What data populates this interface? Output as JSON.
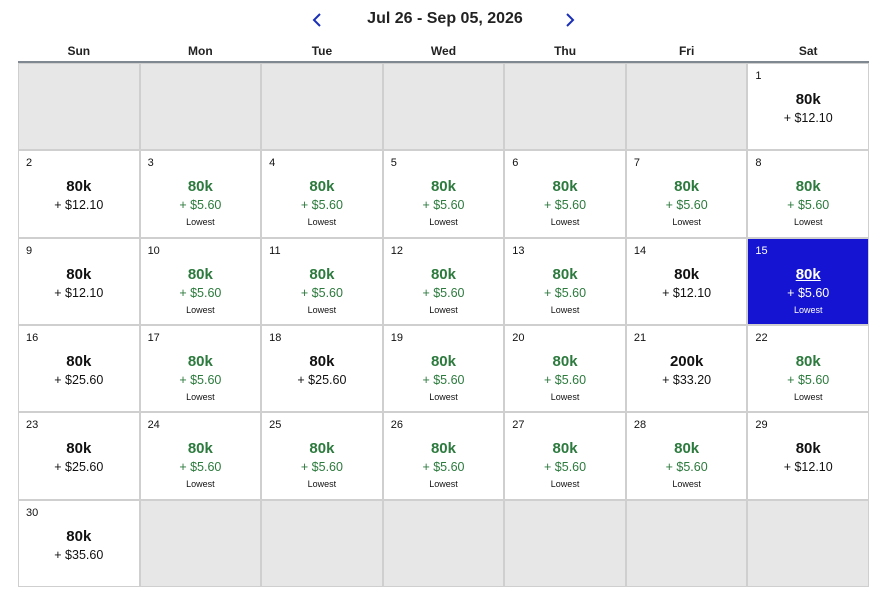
{
  "header": {
    "range_title": "Jul 26 - Sep 05, 2026",
    "prev_icon": "chevron-left-icon",
    "next_icon": "chevron-right-icon",
    "accent_color": "#1a2fb8"
  },
  "weekdays": [
    "Sun",
    "Mon",
    "Tue",
    "Wed",
    "Thu",
    "Fri",
    "Sat"
  ],
  "colors": {
    "lowest": "#2c7a3d",
    "selected": "#1414d2",
    "empty": "#e7e7e7"
  },
  "calendar": {
    "leading_empty": 6,
    "trailing_empty": 6,
    "selected_day": "15",
    "days": [
      {
        "day": "1",
        "points": "80k",
        "fee": "+ $12.10",
        "tag": ""
      },
      {
        "day": "2",
        "points": "80k",
        "fee": "+ $12.10",
        "tag": ""
      },
      {
        "day": "3",
        "points": "80k",
        "fee": "+ $5.60",
        "tag": "Lowest"
      },
      {
        "day": "4",
        "points": "80k",
        "fee": "+ $5.60",
        "tag": "Lowest"
      },
      {
        "day": "5",
        "points": "80k",
        "fee": "+ $5.60",
        "tag": "Lowest"
      },
      {
        "day": "6",
        "points": "80k",
        "fee": "+ $5.60",
        "tag": "Lowest"
      },
      {
        "day": "7",
        "points": "80k",
        "fee": "+ $5.60",
        "tag": "Lowest"
      },
      {
        "day": "8",
        "points": "80k",
        "fee": "+ $5.60",
        "tag": "Lowest"
      },
      {
        "day": "9",
        "points": "80k",
        "fee": "+ $12.10",
        "tag": ""
      },
      {
        "day": "10",
        "points": "80k",
        "fee": "+ $5.60",
        "tag": "Lowest"
      },
      {
        "day": "11",
        "points": "80k",
        "fee": "+ $5.60",
        "tag": "Lowest"
      },
      {
        "day": "12",
        "points": "80k",
        "fee": "+ $5.60",
        "tag": "Lowest"
      },
      {
        "day": "13",
        "points": "80k",
        "fee": "+ $5.60",
        "tag": "Lowest"
      },
      {
        "day": "14",
        "points": "80k",
        "fee": "+ $12.10",
        "tag": ""
      },
      {
        "day": "15",
        "points": "80k",
        "fee": "+ $5.60",
        "tag": "Lowest"
      },
      {
        "day": "16",
        "points": "80k",
        "fee": "+ $25.60",
        "tag": ""
      },
      {
        "day": "17",
        "points": "80k",
        "fee": "+ $5.60",
        "tag": "Lowest"
      },
      {
        "day": "18",
        "points": "80k",
        "fee": "+ $25.60",
        "tag": ""
      },
      {
        "day": "19",
        "points": "80k",
        "fee": "+ $5.60",
        "tag": "Lowest"
      },
      {
        "day": "20",
        "points": "80k",
        "fee": "+ $5.60",
        "tag": "Lowest"
      },
      {
        "day": "21",
        "points": "200k",
        "fee": "+ $33.20",
        "tag": ""
      },
      {
        "day": "22",
        "points": "80k",
        "fee": "+ $5.60",
        "tag": "Lowest"
      },
      {
        "day": "23",
        "points": "80k",
        "fee": "+ $25.60",
        "tag": ""
      },
      {
        "day": "24",
        "points": "80k",
        "fee": "+ $5.60",
        "tag": "Lowest"
      },
      {
        "day": "25",
        "points": "80k",
        "fee": "+ $5.60",
        "tag": "Lowest"
      },
      {
        "day": "26",
        "points": "80k",
        "fee": "+ $5.60",
        "tag": "Lowest"
      },
      {
        "day": "27",
        "points": "80k",
        "fee": "+ $5.60",
        "tag": "Lowest"
      },
      {
        "day": "28",
        "points": "80k",
        "fee": "+ $5.60",
        "tag": "Lowest"
      },
      {
        "day": "29",
        "points": "80k",
        "fee": "+ $12.10",
        "tag": ""
      },
      {
        "day": "30",
        "points": "80k",
        "fee": "+ $35.60",
        "tag": ""
      }
    ]
  }
}
